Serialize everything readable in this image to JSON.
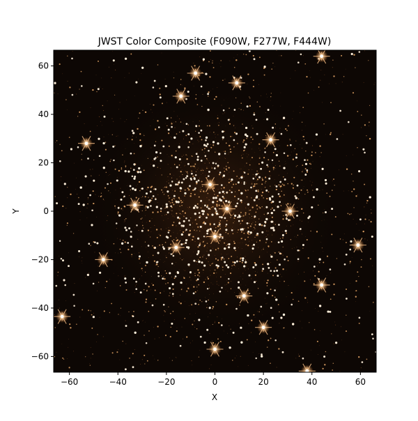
{
  "chart_data": {
    "type": "image",
    "title": "JWST Color Composite (F090W, F277W, F444W)",
    "xlabel": "X",
    "ylabel": "Y",
    "xlim": [
      -66.5,
      66.5
    ],
    "ylim": [
      -66.5,
      66.5
    ],
    "xticks": [
      {
        "value": -60,
        "label": "−60"
      },
      {
        "value": -40,
        "label": "−40"
      },
      {
        "value": -20,
        "label": "−20"
      },
      0,
      20,
      40,
      60
    ],
    "yticks": [
      {
        "value": -60,
        "label": "−60"
      },
      {
        "value": -40,
        "label": "−40"
      },
      {
        "value": -20,
        "label": "−20"
      },
      0,
      20,
      40,
      60
    ],
    "x": [
      -8,
      -14,
      9,
      -53,
      23,
      0,
      -63,
      0,
      20,
      12,
      44,
      59,
      38,
      -16,
      31,
      -33,
      44,
      -46,
      5,
      -2
    ],
    "values": [
      57,
      47.5,
      53,
      28,
      29.5,
      -10.5,
      -43.5,
      -57,
      -48,
      -35,
      -30.5,
      -14,
      -66,
      -15,
      0,
      2.5,
      64,
      -20,
      1,
      11
    ],
    "color": "#ffc58a",
    "background": "#0d0704"
  }
}
